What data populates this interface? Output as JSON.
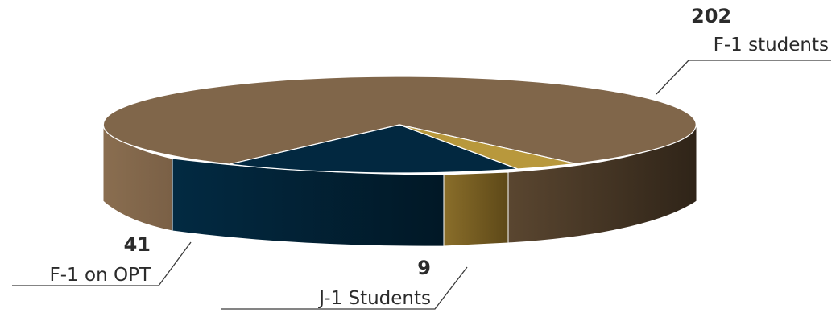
{
  "chart_data": {
    "type": "pie",
    "style": "3d",
    "categories": [
      "F-1 students",
      "F-1 on OPT",
      "J-1 Students"
    ],
    "values": [
      202,
      41,
      9
    ],
    "value_labels": [
      "202",
      "41",
      "9"
    ],
    "colors": [
      "#80664a",
      "#022840",
      "#b8983c"
    ],
    "title": "",
    "legend": "none"
  }
}
